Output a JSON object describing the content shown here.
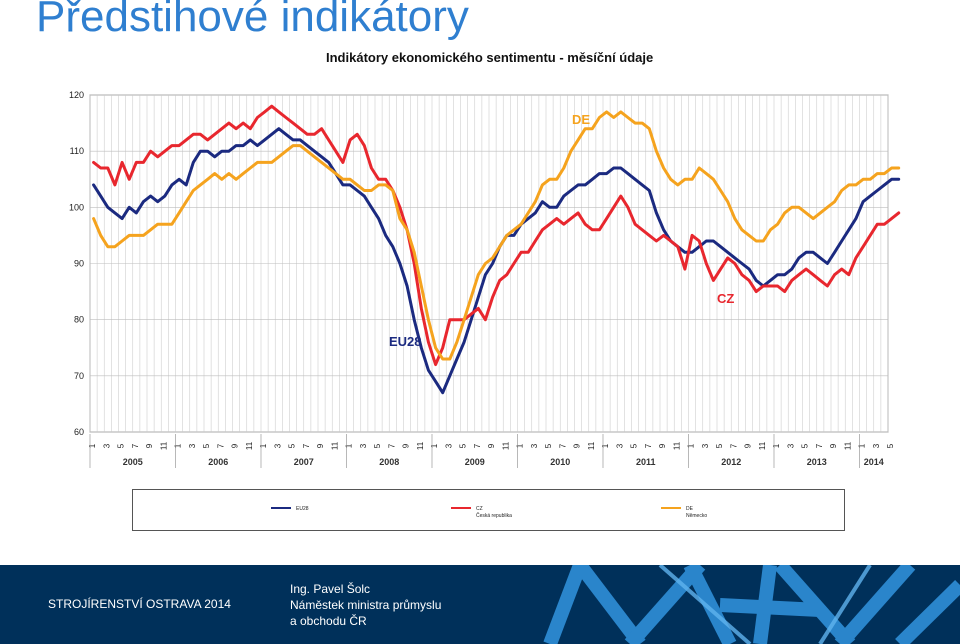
{
  "slide": {
    "title": "Předstihové indikátory"
  },
  "chart_data": {
    "type": "line",
    "title": "Indikátory ekonomického sentimentu - měsíční údaje",
    "ylim": [
      60,
      120
    ],
    "yticks": [
      60,
      70,
      80,
      90,
      100,
      110,
      120
    ],
    "grid": true,
    "x_start": "2005-01",
    "month_tick_labels": [
      "1",
      "3",
      "5",
      "7",
      "9",
      "11"
    ],
    "years": [
      "2005",
      "2006",
      "2007",
      "2008",
      "2009",
      "2010",
      "2011",
      "2012",
      "2013",
      "2014"
    ],
    "annotations": [
      "DE",
      "CZ",
      "EU28"
    ],
    "legend_position": "bottom",
    "series": [
      {
        "name": "EU28",
        "color": "#1b2a80",
        "values": [
          104,
          102,
          100,
          99,
          98,
          100,
          99,
          101,
          102,
          101,
          102,
          104,
          105,
          104,
          108,
          110,
          110,
          109,
          110,
          110,
          111,
          111,
          112,
          111,
          112,
          113,
          114,
          113,
          112,
          112,
          111,
          110,
          109,
          108,
          106,
          104,
          104,
          103,
          102,
          100,
          98,
          95,
          93,
          90,
          86,
          80,
          75,
          71,
          69,
          67,
          70,
          73,
          76,
          80,
          84,
          88,
          90,
          93,
          95,
          95,
          97,
          98,
          99,
          101,
          100,
          100,
          102,
          103,
          104,
          104,
          105,
          106,
          106,
          107,
          107,
          106,
          105,
          104,
          103,
          99,
          96,
          94,
          93,
          92,
          92,
          93,
          94,
          94,
          93,
          92,
          91,
          90,
          89,
          87,
          86,
          87,
          88,
          88,
          89,
          91,
          92,
          92,
          91,
          90,
          92,
          94,
          96,
          98,
          101,
          102,
          103,
          104,
          105,
          105
        ]
      },
      {
        "name": "CZ",
        "color": "#e8272e",
        "values": [
          108,
          107,
          107,
          104,
          108,
          105,
          108,
          108,
          110,
          109,
          110,
          111,
          111,
          112,
          113,
          113,
          112,
          113,
          114,
          115,
          114,
          115,
          114,
          116,
          117,
          118,
          117,
          116,
          115,
          114,
          113,
          113,
          114,
          112,
          110,
          108,
          112,
          113,
          111,
          107,
          105,
          105,
          103,
          100,
          96,
          90,
          82,
          76,
          72,
          75,
          80,
          80,
          80,
          81,
          82,
          80,
          84,
          87,
          88,
          90,
          92,
          92,
          94,
          96,
          97,
          98,
          97,
          98,
          99,
          97,
          96,
          96,
          98,
          100,
          102,
          100,
          97,
          96,
          95,
          94,
          95,
          94,
          93,
          89,
          95,
          94,
          90,
          87,
          89,
          91,
          90,
          88,
          87,
          85,
          86,
          86,
          86,
          85,
          87,
          88,
          89,
          88,
          87,
          86,
          88,
          89,
          88,
          91,
          93,
          95,
          97,
          97,
          98,
          99
        ]
      },
      {
        "name": "DE",
        "color": "#f5a31e",
        "values": [
          98,
          95,
          93,
          93,
          94,
          95,
          95,
          95,
          96,
          97,
          97,
          97,
          99,
          101,
          103,
          104,
          105,
          106,
          105,
          106,
          105,
          106,
          107,
          108,
          108,
          108,
          109,
          110,
          111,
          111,
          110,
          109,
          108,
          107,
          106,
          105,
          105,
          104,
          103,
          103,
          104,
          104,
          103,
          98,
          96,
          92,
          86,
          80,
          75,
          73,
          73,
          76,
          80,
          84,
          88,
          90,
          91,
          93,
          95,
          96,
          97,
          99,
          101,
          104,
          105,
          105,
          107,
          110,
          112,
          114,
          114,
          116,
          117,
          116,
          117,
          116,
          115,
          115,
          114,
          110,
          107,
          105,
          104,
          105,
          105,
          107,
          106,
          105,
          103,
          101,
          98,
          96,
          95,
          94,
          94,
          96,
          97,
          99,
          100,
          100,
          99,
          98,
          99,
          100,
          101,
          103,
          104,
          104,
          105,
          105,
          106,
          106,
          107,
          107
        ]
      }
    ]
  },
  "legend": [
    {
      "line1": "EU28",
      "line2": ""
    },
    {
      "line1": "CZ",
      "line2": "Česká republika"
    },
    {
      "line1": "DE",
      "line2": "Německo"
    }
  ],
  "footer": {
    "event": "STROJÍRENSTVÍ OSTRAVA 2014",
    "presenter": [
      "Ing. Pavel Šolc",
      "Náměstek ministra průmyslu",
      "a obchodu ČR"
    ],
    "bg_color": "#00305a"
  }
}
